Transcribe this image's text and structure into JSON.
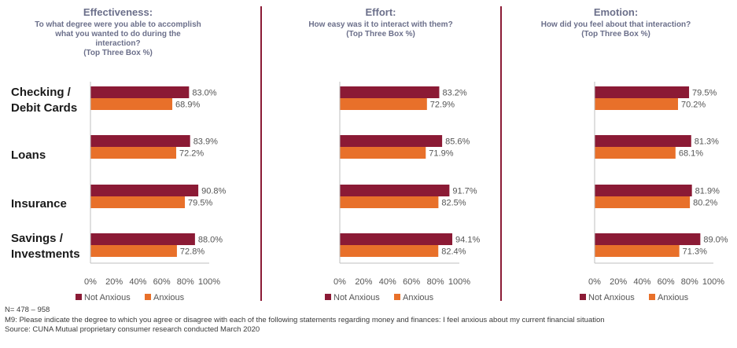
{
  "categories": [
    "Checking / Debit Cards",
    "Loans",
    "Insurance",
    "Savings / Investments"
  ],
  "category_lines": [
    [
      "Checking /",
      "Debit Cards"
    ],
    [
      "Loans"
    ],
    [
      "Insurance"
    ],
    [
      "Savings /",
      "Investments"
    ]
  ],
  "legend": [
    "Not Anxious",
    "Anxious"
  ],
  "colors": {
    "not_anxious": "#8b1a35",
    "anxious": "#e8702a",
    "heading": "#6b6f8a",
    "divider": "#8b1a35"
  },
  "x_ticks": [
    "0%",
    "20%",
    "40%",
    "60%",
    "80%",
    "100%"
  ],
  "notes": [
    "N= 478 – 958",
    "M9: Please indicate the degree to which you agree or disagree with each of the following statements regarding money and finances: I feel anxious about my current financial situation",
    "Source: CUNA Mutual proprietary consumer research conducted March 2020"
  ],
  "chart_data": [
    {
      "type": "bar",
      "orientation": "horizontal",
      "title": "Effectiveness:",
      "subtitle": [
        "To what degree were you able to accomplish",
        "what you wanted to do during the",
        "interaction?",
        "(Top Three Box %)"
      ],
      "categories": [
        "Checking / Debit Cards",
        "Loans",
        "Insurance",
        "Savings / Investments"
      ],
      "series": [
        {
          "name": "Not Anxious",
          "values": [
            83.0,
            83.9,
            90.8,
            88.0
          ],
          "labels": [
            "83.0%",
            "83.9%",
            "90.8%",
            "88.0%"
          ]
        },
        {
          "name": "Anxious",
          "values": [
            68.9,
            72.2,
            79.5,
            72.8
          ],
          "labels": [
            "68.9%",
            "72.2%",
            "79.5%",
            "72.8%"
          ]
        }
      ],
      "xlim": [
        0,
        100
      ],
      "legend_position": "bottom",
      "grid": false
    },
    {
      "type": "bar",
      "orientation": "horizontal",
      "title": "Effort:",
      "subtitle": [
        "How easy was it to interact with them?",
        "(Top Three Box %)"
      ],
      "categories": [
        "Checking / Debit Cards",
        "Loans",
        "Insurance",
        "Savings / Investments"
      ],
      "series": [
        {
          "name": "Not Anxious",
          "values": [
            83.2,
            85.6,
            91.7,
            94.1
          ],
          "labels": [
            "83.2%",
            "85.6%",
            "91.7%",
            "94.1%"
          ]
        },
        {
          "name": "Anxious",
          "values": [
            72.9,
            71.9,
            82.5,
            82.4
          ],
          "labels": [
            "72.9%",
            "71.9%",
            "82.5%",
            "82.4%"
          ]
        }
      ],
      "xlim": [
        0,
        100
      ],
      "legend_position": "bottom",
      "grid": false
    },
    {
      "type": "bar",
      "orientation": "horizontal",
      "title": "Emotion:",
      "subtitle": [
        "How did you feel about that interaction?",
        "(Top Three Box %)"
      ],
      "categories": [
        "Checking / Debit Cards",
        "Loans",
        "Insurance",
        "Savings / Investments"
      ],
      "series": [
        {
          "name": "Not Anxious",
          "values": [
            79.5,
            81.3,
            81.9,
            89.0
          ],
          "labels": [
            "79.5%",
            "81.3%",
            "81.9%",
            "89.0%"
          ]
        },
        {
          "name": "Anxious",
          "values": [
            70.2,
            68.1,
            80.2,
            71.3
          ],
          "labels": [
            "70.2%",
            "68.1%",
            "80.2%",
            "71.3%"
          ]
        }
      ],
      "xlim": [
        0,
        100
      ],
      "legend_position": "bottom",
      "grid": false
    }
  ]
}
